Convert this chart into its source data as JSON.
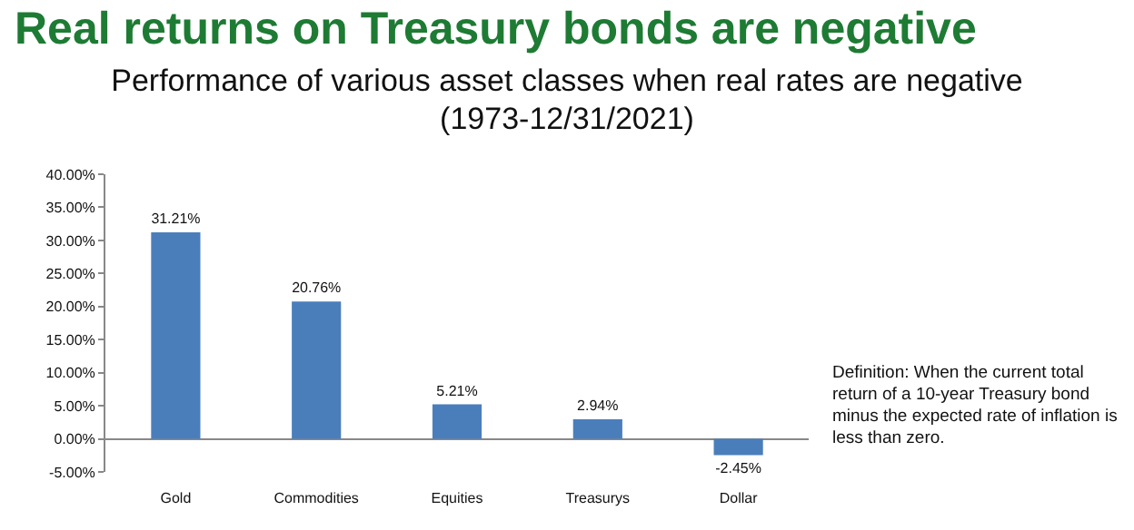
{
  "chart_data": {
    "type": "bar",
    "title": "Real returns on Treasury bonds are negative",
    "subtitle": "Performance of various asset classes when real rates are negative\n(1973-12/31/2021)",
    "categories": [
      "Gold",
      "Commodities",
      "Equities",
      "Treasurys",
      "Dollar"
    ],
    "values": [
      31.21,
      20.76,
      5.21,
      2.94,
      -2.45
    ],
    "value_labels": [
      "31.21%",
      "20.76%",
      "5.21%",
      "2.94%",
      "-2.45%"
    ],
    "color": "#4a7ebb",
    "ylim": [
      -5,
      40
    ],
    "yticks": [
      {
        "value": -5,
        "label": "-5.00%"
      },
      {
        "value": 0,
        "label": "0.00%"
      },
      {
        "value": 5,
        "label": "5.00%"
      },
      {
        "value": 10,
        "label": "10.00%"
      },
      {
        "value": 15,
        "label": "15.00%"
      },
      {
        "value": 20,
        "label": "20.00%"
      },
      {
        "value": 25,
        "label": "25.00%"
      },
      {
        "value": 30,
        "label": "30.00%"
      },
      {
        "value": 35,
        "label": "35.00%"
      },
      {
        "value": 40,
        "label": "40.00%"
      }
    ],
    "annotations": [
      "Definition: When the current total return of a 10-year Treasury bond minus the expected rate of inflation is less than zero."
    ]
  }
}
